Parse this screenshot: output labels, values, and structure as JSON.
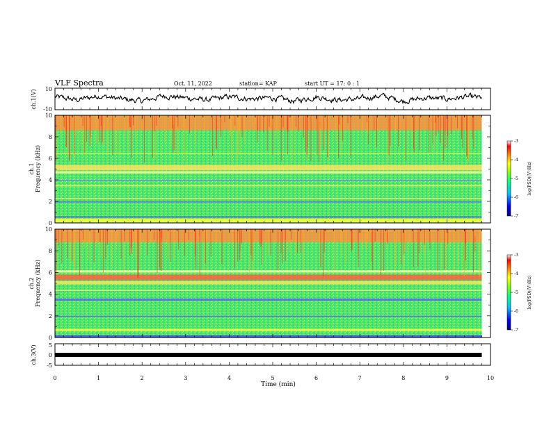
{
  "header": {
    "title": "VLF Spectra",
    "date": "Oct. 11, 2022",
    "station": "station= KAP",
    "start_ut": "start  UT =   17: 0  : 1"
  },
  "colors": {
    "spectrogram_background": "#44e060",
    "trace": "#000000",
    "colorbar": [
      "#000080",
      "#0000ff",
      "#00c0ff",
      "#00ff80",
      "#80ff00",
      "#ffff00",
      "#ff8000",
      "#ff0000",
      "#ffffff"
    ]
  },
  "chart_data": [
    {
      "type": "line",
      "panel": "ch1-waveform",
      "ylabel": "ch.1(V)",
      "ylim": [
        -10,
        10
      ],
      "y_ticks": [
        "10",
        "-10"
      ],
      "xlim": [
        0,
        10
      ],
      "note_values": "noisy waveform fluctuating roughly between -6 and 6 V over 0-9.8 min",
      "x": [
        0,
        0.5,
        1,
        1.5,
        2,
        2.5,
        3,
        3.5,
        4,
        4.5,
        5,
        5.5,
        6,
        6.5,
        7,
        7.5,
        8,
        8.5,
        9,
        9.5,
        9.8
      ],
      "values": [
        2,
        -1,
        3,
        0,
        -2,
        3,
        1,
        -1,
        2,
        0,
        1,
        -2,
        2,
        -1,
        0,
        3,
        -2,
        1,
        0,
        2,
        1
      ]
    },
    {
      "type": "heatmap",
      "panel": "ch1-spectrogram",
      "ylabel": "ch.1",
      "ylabel2": "Frequency (kHz)",
      "ylim": [
        0,
        10
      ],
      "y_ticks": [
        "0",
        "2",
        "4",
        "6",
        "8",
        "10"
      ],
      "xlim": [
        0,
        10
      ],
      "colorbar": {
        "label": "log(PSD)(V²/Hz)",
        "range": [
          -7,
          -3
        ],
        "ticks": [
          "-3",
          "-4",
          "-5",
          "-6",
          "-7"
        ]
      },
      "bands_khz": [
        {
          "from": 0.0,
          "to": 0.4,
          "color": "#ffff40"
        },
        {
          "from": 0.5,
          "to": 0.6,
          "color": "#4040ff"
        },
        {
          "from": 1.9,
          "to": 2.0,
          "color": "#6060ff"
        },
        {
          "from": 2.2,
          "to": 2.3,
          "color": "#ffff60"
        },
        {
          "from": 3.4,
          "to": 3.5,
          "color": "#ffff60"
        },
        {
          "from": 3.9,
          "to": 4.0,
          "color": "#8080ff"
        },
        {
          "from": 4.6,
          "to": 4.8,
          "color": "#ffffa0"
        },
        {
          "from": 4.9,
          "to": 5.4,
          "color": "#ffe060"
        },
        {
          "from": 6.4,
          "to": 6.5,
          "color": "#c0ff60"
        },
        {
          "from": 8.6,
          "to": 10.0,
          "color": "#ff9040"
        }
      ]
    },
    {
      "type": "heatmap",
      "panel": "ch2-spectrogram",
      "ylabel": "ch.2",
      "ylabel2": "Frequency (kHz)",
      "ylim": [
        0,
        10
      ],
      "y_ticks": [
        "0",
        "2",
        "4",
        "6",
        "8",
        "10"
      ],
      "xlim": [
        0,
        10
      ],
      "colorbar": {
        "label": "log(PSD)(V²/Hz)",
        "range": [
          -7,
          -3
        ],
        "ticks": [
          "-3",
          "-4",
          "-5",
          "-6",
          "-7"
        ]
      },
      "bands_khz": [
        {
          "from": 0.0,
          "to": 0.2,
          "color": "#4040ff"
        },
        {
          "from": 0.6,
          "to": 0.8,
          "color": "#ffff40"
        },
        {
          "from": 1.9,
          "to": 2.0,
          "color": "#6060ff"
        },
        {
          "from": 3.4,
          "to": 3.6,
          "color": "#6060ff"
        },
        {
          "from": 4.3,
          "to": 4.4,
          "color": "#ffff60"
        },
        {
          "from": 4.9,
          "to": 5.2,
          "color": "#ffe060"
        },
        {
          "from": 5.3,
          "to": 5.8,
          "color": "#ff6040"
        },
        {
          "from": 6.0,
          "to": 6.2,
          "color": "#ffffa0"
        },
        {
          "from": 8.8,
          "to": 10.0,
          "color": "#ff9040"
        }
      ]
    },
    {
      "type": "line",
      "panel": "ch3-waveform",
      "ylabel": "ch.3(V)",
      "ylim": [
        -5,
        5
      ],
      "y_ticks": [
        "5",
        "0",
        "-5"
      ],
      "xlim": [
        0,
        10
      ],
      "x": [
        0,
        9.8
      ],
      "values": [
        0,
        0
      ]
    }
  ],
  "xaxis": {
    "label": "Time  (min)",
    "ticks": [
      "0",
      "1",
      "2",
      "3",
      "4",
      "5",
      "6",
      "7",
      "8",
      "9",
      "10"
    ]
  }
}
